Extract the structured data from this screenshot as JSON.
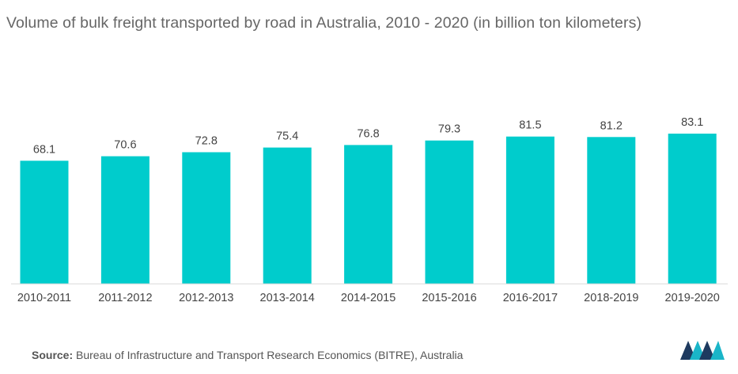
{
  "chart_data": {
    "type": "bar",
    "title": "Volume of bulk freight transported by road in Australia, 2010 - 2020 (in billion ton kilometers)",
    "xlabel": "",
    "ylabel": "",
    "categories": [
      "2010-2011",
      "2011-2012",
      "2012-2013",
      "2013-2014",
      "2014-2015",
      "2015-2016",
      "2016-2017",
      "2018-2019",
      "2019-2020"
    ],
    "values": [
      68.1,
      70.6,
      72.8,
      75.4,
      76.8,
      79.3,
      81.5,
      81.2,
      83.1
    ],
    "value_labels": [
      "68.1",
      "70.6",
      "72.8",
      "75.4",
      "76.8",
      "79.3",
      "81.5",
      "81.2",
      "83.1"
    ],
    "ylim": [
      0,
      83.1
    ],
    "grid": false,
    "legend": "none",
    "bar_color": "#00CCCC"
  },
  "source": {
    "label": "Source:",
    "text": "Bureau of Infrastructure and Transport Research Economics (BITRE), Australia"
  },
  "logo": {
    "icon": "mordor-intelligence-logo",
    "colors": [
      "#1E3A5F",
      "#1AB5C8"
    ]
  }
}
